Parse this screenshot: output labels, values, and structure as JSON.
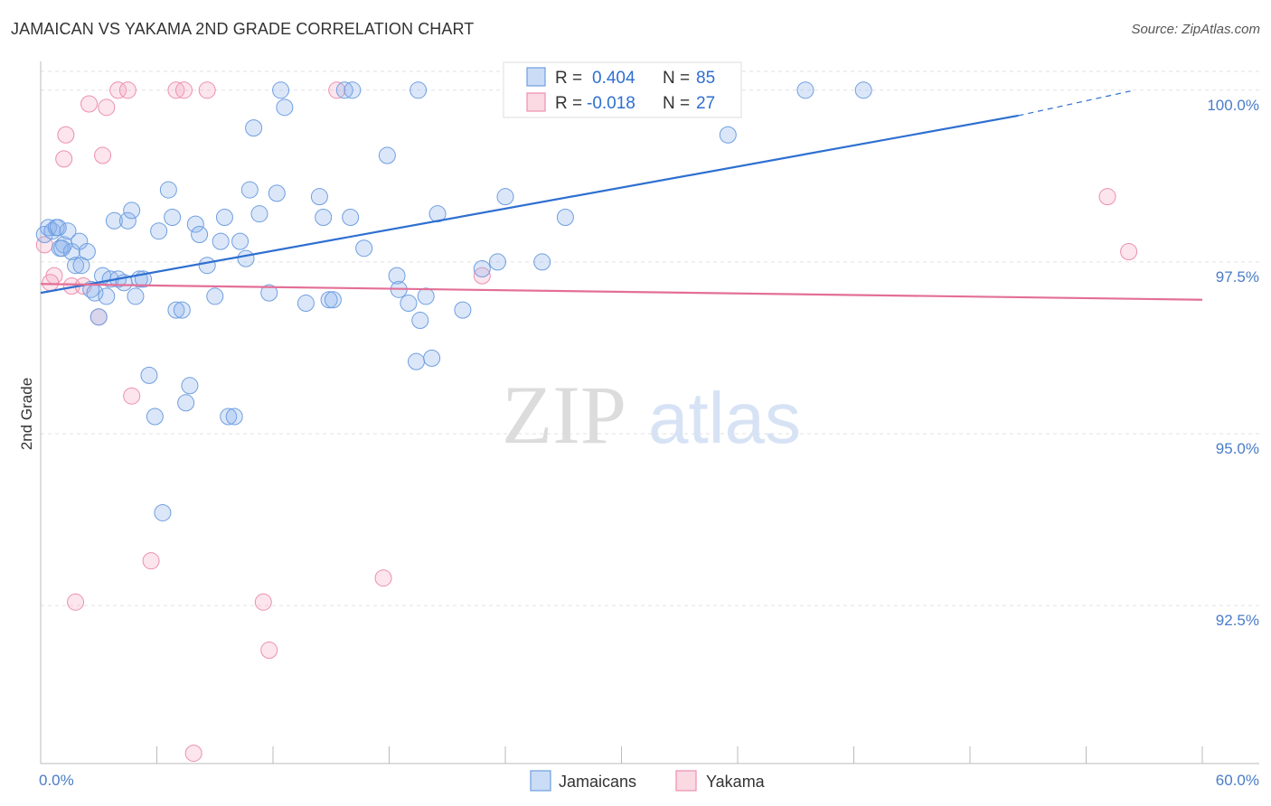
{
  "title": "JAMAICAN VS YAKAMA 2ND GRADE CORRELATION CHART",
  "source": "Source: ZipAtlas.com",
  "watermark": {
    "zip": "ZIP",
    "atlas": "atlas"
  },
  "colors": {
    "blue": "#6f9ee0",
    "blue_fill": "rgba(137,177,235,0.30)",
    "blue_line": "#2e6fd0",
    "pink": "#ec8fae",
    "pink_fill": "rgba(244,170,194,0.30)",
    "pink_line": "#e36f97",
    "tick_text": "#4a7cc7"
  },
  "legend": {
    "r_label": "R =",
    "n_label": "N =",
    "rows": [
      {
        "r": "0.404",
        "n": "85"
      },
      {
        "r": "-0.018",
        "n": "27"
      }
    ]
  },
  "chart_data": {
    "type": "scatter",
    "title": "JAMAICAN VS YAKAMA 2ND GRADE CORRELATION CHART",
    "xlabel": "",
    "ylabel": "2nd Grade",
    "xlim": [
      0,
      60
    ],
    "ylim": [
      90.2,
      100.3
    ],
    "x_tick_labels": [
      "0.0%",
      "60.0%"
    ],
    "y_ticks": [
      {
        "value": 100.0,
        "label": "100.0%"
      },
      {
        "value": 97.5,
        "label": "97.5%"
      },
      {
        "value": 95.0,
        "label": "95.0%"
      },
      {
        "value": 92.5,
        "label": "92.5%"
      }
    ],
    "grid": true,
    "legend_position": "top-center",
    "series": [
      {
        "name": "Jamaicans",
        "r": 0.404,
        "n": 85,
        "trend": {
          "x0": 0,
          "y0": 97.05,
          "x1": 50.5,
          "y1": 99.63,
          "dashed_to_x": 56.5,
          "dashed_to_y": 100.0
        },
        "points": [
          [
            0.2,
            97.9
          ],
          [
            0.4,
            98.0
          ],
          [
            0.6,
            97.95
          ],
          [
            0.8,
            98.0
          ],
          [
            1.0,
            97.7
          ],
          [
            1.2,
            97.75
          ],
          [
            1.4,
            97.95
          ],
          [
            1.6,
            97.65
          ],
          [
            1.8,
            97.45
          ],
          [
            2.0,
            97.8
          ],
          [
            2.1,
            97.45
          ],
          [
            2.4,
            97.65
          ],
          [
            2.6,
            97.1
          ],
          [
            2.8,
            97.05
          ],
          [
            3.0,
            96.7
          ],
          [
            3.2,
            97.3
          ],
          [
            3.4,
            97.0
          ],
          [
            3.6,
            97.25
          ],
          [
            3.8,
            98.1
          ],
          [
            4.0,
            97.25
          ],
          [
            4.3,
            97.2
          ],
          [
            4.5,
            98.1
          ],
          [
            4.7,
            98.25
          ],
          [
            4.9,
            97.0
          ],
          [
            5.1,
            97.25
          ],
          [
            5.3,
            97.25
          ],
          [
            5.6,
            95.85
          ],
          [
            5.9,
            95.25
          ],
          [
            6.1,
            97.95
          ],
          [
            6.3,
            93.85
          ],
          [
            6.6,
            98.55
          ],
          [
            6.8,
            98.15
          ],
          [
            7.0,
            96.8
          ],
          [
            7.3,
            96.8
          ],
          [
            7.5,
            95.45
          ],
          [
            7.7,
            95.7
          ],
          [
            8.0,
            98.05
          ],
          [
            8.2,
            97.9
          ],
          [
            8.6,
            97.45
          ],
          [
            9.0,
            97.0
          ],
          [
            9.3,
            97.8
          ],
          [
            9.5,
            98.15
          ],
          [
            9.7,
            95.25
          ],
          [
            10.0,
            95.25
          ],
          [
            10.3,
            97.8
          ],
          [
            10.6,
            97.55
          ],
          [
            10.8,
            98.55
          ],
          [
            11.0,
            99.45
          ],
          [
            11.3,
            98.2
          ],
          [
            11.8,
            97.05
          ],
          [
            12.2,
            98.5
          ],
          [
            12.4,
            100.0
          ],
          [
            12.6,
            99.75
          ],
          [
            13.7,
            96.9
          ],
          [
            14.4,
            98.45
          ],
          [
            14.6,
            98.15
          ],
          [
            14.9,
            96.95
          ],
          [
            15.1,
            96.95
          ],
          [
            15.7,
            100.0
          ],
          [
            16.0,
            98.15
          ],
          [
            16.1,
            100.0
          ],
          [
            16.7,
            97.7
          ],
          [
            17.9,
            99.05
          ],
          [
            18.4,
            97.3
          ],
          [
            18.5,
            97.1
          ],
          [
            19.0,
            96.9
          ],
          [
            19.4,
            96.05
          ],
          [
            19.5,
            100.0
          ],
          [
            19.6,
            96.65
          ],
          [
            19.9,
            97.0
          ],
          [
            20.2,
            96.1
          ],
          [
            20.5,
            98.2
          ],
          [
            21.8,
            96.8
          ],
          [
            22.8,
            97.4
          ],
          [
            23.6,
            97.5
          ],
          [
            24.0,
            98.45
          ],
          [
            25.9,
            97.5
          ],
          [
            27.1,
            98.15
          ],
          [
            27.8,
            100.0
          ],
          [
            30.2,
            100.0
          ],
          [
            35.5,
            99.35
          ],
          [
            39.5,
            100.0
          ],
          [
            42.5,
            100.0
          ],
          [
            0.9,
            98.0
          ],
          [
            1.1,
            97.7
          ]
        ]
      },
      {
        "name": "Yakama",
        "r": -0.018,
        "n": 27,
        "trend": {
          "x0": 0,
          "y0": 97.18,
          "x1": 60,
          "y1": 96.95
        },
        "points": [
          [
            0.2,
            97.75
          ],
          [
            0.7,
            97.3
          ],
          [
            1.2,
            99.0
          ],
          [
            1.3,
            99.35
          ],
          [
            1.6,
            97.15
          ],
          [
            1.8,
            92.55
          ],
          [
            2.2,
            97.15
          ],
          [
            2.5,
            99.8
          ],
          [
            3.0,
            96.7
          ],
          [
            3.2,
            99.05
          ],
          [
            3.4,
            99.75
          ],
          [
            4.0,
            100.0
          ],
          [
            4.5,
            100.0
          ],
          [
            4.7,
            95.55
          ],
          [
            5.7,
            93.15
          ],
          [
            7.0,
            100.0
          ],
          [
            7.4,
            100.0
          ],
          [
            7.9,
            90.35
          ],
          [
            8.6,
            100.0
          ],
          [
            11.5,
            92.55
          ],
          [
            11.8,
            91.85
          ],
          [
            15.3,
            100.0
          ],
          [
            17.7,
            92.9
          ],
          [
            22.8,
            97.3
          ],
          [
            55.1,
            98.45
          ],
          [
            56.2,
            97.65
          ],
          [
            0.5,
            97.2
          ]
        ]
      }
    ]
  }
}
